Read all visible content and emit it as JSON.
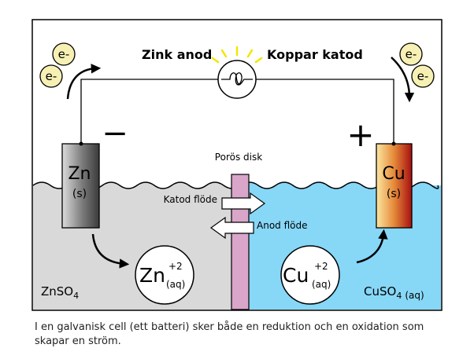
{
  "labels": {
    "zinc_anode": "Zink anod",
    "copper_cathode": "Koppar katod",
    "porous_disk": "Porös disk",
    "cathode_flow": "Katod flöde",
    "anode_flow": "Anod flöde",
    "electron": "e-",
    "minus": "−",
    "plus": "+"
  },
  "electrodes": {
    "zn_symbol": "Zn",
    "zn_state": "(s)",
    "cu_symbol": "Cu",
    "cu_state": "(s)"
  },
  "ions": {
    "zn_symbol": "Zn",
    "zn_charge": "+2",
    "zn_state": "(aq)",
    "cu_symbol": "Cu",
    "cu_charge": "+2",
    "cu_state": "(aq)"
  },
  "solutions": {
    "left_base": "ZnSO",
    "left_sub": "4",
    "right_base": "CuSO",
    "right_sub": "4",
    "right_state": "(aq)"
  },
  "caption": "I en galvanisk cell (ett batteri) sker både en reduktion och en oxidation som skapar en ström.",
  "colors": {
    "left_solution": "#d9d9d9",
    "right_solution": "#87d7f7",
    "disk": "#d9a5c9",
    "electron_fill": "#f6f0b4",
    "bulb_rays": "#f2e600"
  }
}
